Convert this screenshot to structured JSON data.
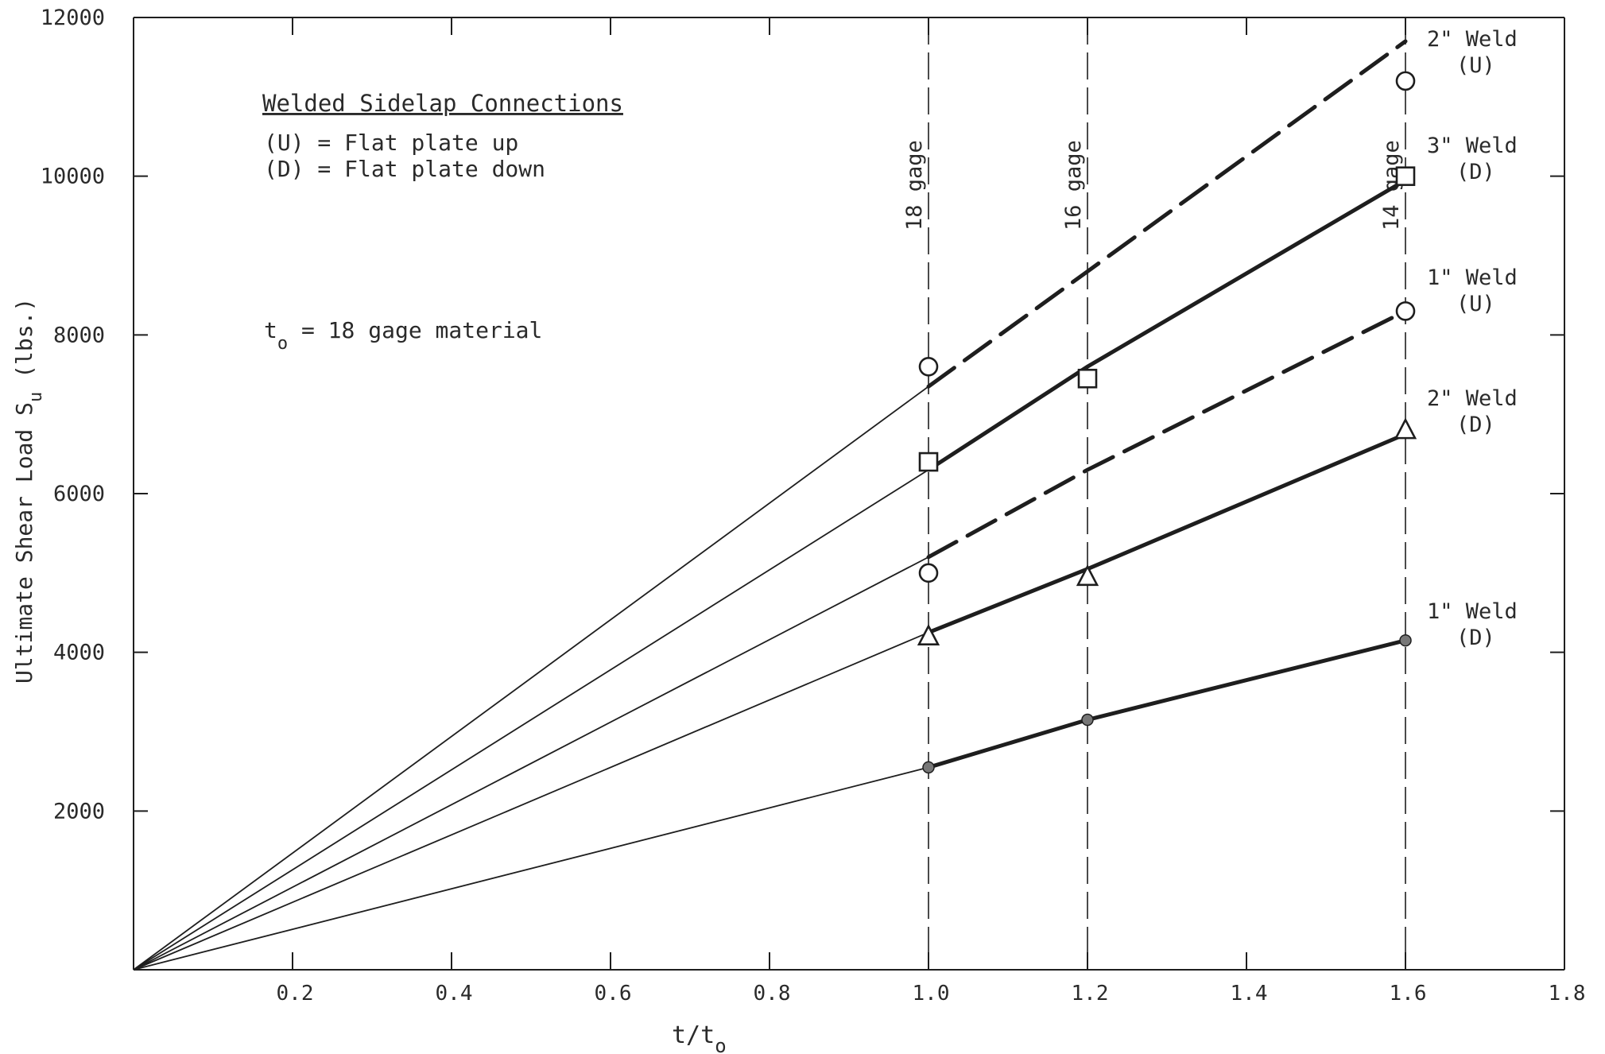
{
  "chart_data": {
    "type": "line",
    "xlabel": "t/t",
    "xlabel_sub": "o",
    "ylabel": "Ultimate Shear Load S",
    "ylabel_sub": "u",
    "ylabel_tail": " (lbs.)",
    "xlim": [
      0,
      1.8
    ],
    "ylim": [
      0,
      12000
    ],
    "x_ticks": [
      0.2,
      0.4,
      0.6,
      0.8,
      1.0,
      1.2,
      1.4,
      1.6,
      1.8
    ],
    "x_tick_labels": [
      "0.2",
      "0.4",
      "0.6",
      "0.8",
      "1.0",
      "1.2",
      "1.4",
      "1.6",
      "1.8"
    ],
    "y_ticks": [
      2000,
      4000,
      6000,
      8000,
      10000,
      12000
    ],
    "y_tick_labels": [
      "2000",
      "4000",
      "6000",
      "8000",
      "10000",
      "12000"
    ],
    "grid": false,
    "legend_box": {
      "title": "Welded Sidelap Connections",
      "lines": [
        "(U) = Flat plate up",
        "(D) = Flat plate down"
      ]
    },
    "note": {
      "prefix": "t",
      "sub": "o",
      "text": " = 18 gage material"
    },
    "reference_lines": [
      {
        "x": 1.0,
        "label": "18 gage"
      },
      {
        "x": 1.2,
        "label": "16 gage"
      },
      {
        "x": 1.6,
        "label": "14 gage"
      }
    ],
    "series": [
      {
        "label_lines": [
          "2\" Weld",
          "(U)"
        ],
        "marker": "circle",
        "style": "dashed",
        "line": [
          [
            0,
            0
          ],
          [
            1.0,
            7350
          ],
          [
            1.2,
            8800
          ],
          [
            1.6,
            11700
          ]
        ],
        "points": [
          [
            1.0,
            7600
          ],
          [
            1.6,
            11200
          ]
        ]
      },
      {
        "label_lines": [
          "3\" Weld",
          "(D)"
        ],
        "marker": "square",
        "style": "solid",
        "line": [
          [
            0,
            0
          ],
          [
            1.0,
            6300
          ],
          [
            1.2,
            7600
          ],
          [
            1.6,
            9950
          ]
        ],
        "points": [
          [
            1.0,
            6400
          ],
          [
            1.2,
            7450
          ],
          [
            1.6,
            10000
          ]
        ]
      },
      {
        "label_lines": [
          "1\" Weld",
          "(U)"
        ],
        "marker": "circle",
        "style": "dashed",
        "line": [
          [
            0,
            0
          ],
          [
            1.0,
            5200
          ],
          [
            1.2,
            6300
          ],
          [
            1.6,
            8300
          ]
        ],
        "points": [
          [
            1.0,
            5000
          ],
          [
            1.6,
            8300
          ]
        ]
      },
      {
        "label_lines": [
          "2\" Weld",
          "(D)"
        ],
        "marker": "triangle",
        "style": "solid",
        "line": [
          [
            0,
            0
          ],
          [
            1.0,
            4250
          ],
          [
            1.2,
            5050
          ],
          [
            1.6,
            6750
          ]
        ],
        "points": [
          [
            1.0,
            4200
          ],
          [
            1.2,
            4950
          ],
          [
            1.6,
            6800
          ]
        ]
      },
      {
        "label_lines": [
          "1\" Weld",
          "(D)"
        ],
        "marker": "dot",
        "style": "solid",
        "line": [
          [
            0,
            0
          ],
          [
            1.0,
            2550
          ],
          [
            1.2,
            3150
          ],
          [
            1.6,
            4150
          ]
        ],
        "points": [
          [
            1.0,
            2550
          ],
          [
            1.2,
            3150
          ],
          [
            1.6,
            4150
          ]
        ]
      }
    ]
  }
}
